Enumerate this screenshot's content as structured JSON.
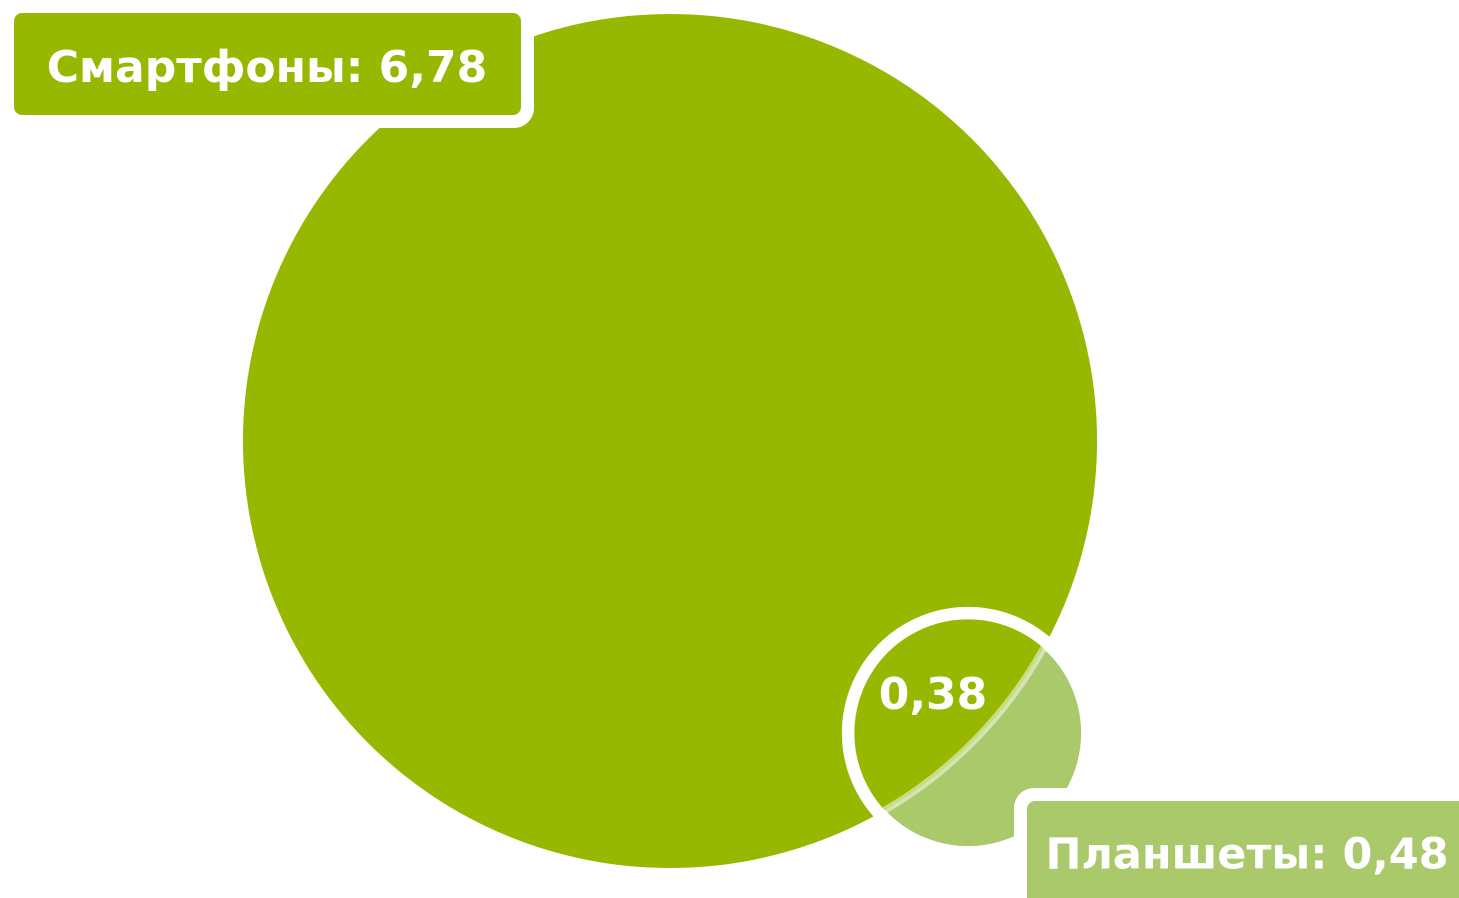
{
  "chart_data": {
    "type": "venn",
    "sets": [
      {
        "label": "Смартфоны: 6,78",
        "value": 6.78,
        "color": "#97b800"
      },
      {
        "label": "Планшеты: 0,48",
        "value": 0.48,
        "color": "#aac96b"
      }
    ],
    "intersection": {
      "label": "0,38",
      "value": 0.38
    }
  }
}
